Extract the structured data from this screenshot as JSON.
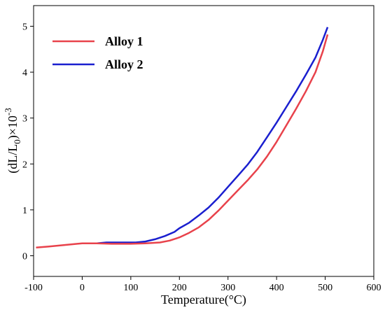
{
  "chart_data": {
    "type": "line",
    "xlabel": "Temperature(°C)",
    "ylabel_parts": {
      "a": "(dL/L",
      "sub": "0",
      "b": ")×10",
      "sup": "-3"
    },
    "xlim": [
      -100,
      600
    ],
    "ylim": [
      -0.45,
      5.45
    ],
    "x_ticks": [
      -100,
      0,
      100,
      200,
      300,
      400,
      500,
      600
    ],
    "x_tick_labels": [
      "-100",
      "0",
      "100",
      "200",
      "300",
      "400",
      "500",
      "600"
    ],
    "y_ticks": [
      0,
      1,
      2,
      3,
      4,
      5
    ],
    "y_tick_labels": [
      "0",
      "1",
      "2",
      "3",
      "4",
      "5"
    ],
    "legend_position": "top-left",
    "grid": false,
    "series": [
      {
        "name": "Alloy 1",
        "color": "#e8424b",
        "points": [
          [
            -95,
            0.18
          ],
          [
            -70,
            0.2
          ],
          [
            -40,
            0.23
          ],
          [
            -10,
            0.26
          ],
          [
            0,
            0.27
          ],
          [
            30,
            0.27
          ],
          [
            60,
            0.26
          ],
          [
            100,
            0.26
          ],
          [
            130,
            0.27
          ],
          [
            160,
            0.29
          ],
          [
            180,
            0.33
          ],
          [
            200,
            0.4
          ],
          [
            220,
            0.5
          ],
          [
            240,
            0.62
          ],
          [
            260,
            0.78
          ],
          [
            280,
            0.98
          ],
          [
            300,
            1.2
          ],
          [
            320,
            1.42
          ],
          [
            340,
            1.64
          ],
          [
            360,
            1.88
          ],
          [
            380,
            2.16
          ],
          [
            400,
            2.48
          ],
          [
            420,
            2.84
          ],
          [
            440,
            3.2
          ],
          [
            460,
            3.58
          ],
          [
            480,
            4.0
          ],
          [
            495,
            4.45
          ],
          [
            505,
            4.82
          ]
        ]
      },
      {
        "name": "Alloy 2",
        "color": "#1a1fcf",
        "points": [
          [
            0,
            0.27
          ],
          [
            30,
            0.27
          ],
          [
            50,
            0.29
          ],
          [
            80,
            0.29
          ],
          [
            110,
            0.29
          ],
          [
            130,
            0.31
          ],
          [
            150,
            0.36
          ],
          [
            170,
            0.43
          ],
          [
            190,
            0.52
          ],
          [
            200,
            0.6
          ],
          [
            220,
            0.72
          ],
          [
            240,
            0.88
          ],
          [
            260,
            1.05
          ],
          [
            280,
            1.26
          ],
          [
            300,
            1.5
          ],
          [
            320,
            1.74
          ],
          [
            340,
            1.98
          ],
          [
            360,
            2.26
          ],
          [
            380,
            2.58
          ],
          [
            400,
            2.9
          ],
          [
            420,
            3.24
          ],
          [
            440,
            3.58
          ],
          [
            460,
            3.94
          ],
          [
            480,
            4.32
          ],
          [
            495,
            4.7
          ],
          [
            505,
            4.98
          ]
        ]
      }
    ]
  }
}
